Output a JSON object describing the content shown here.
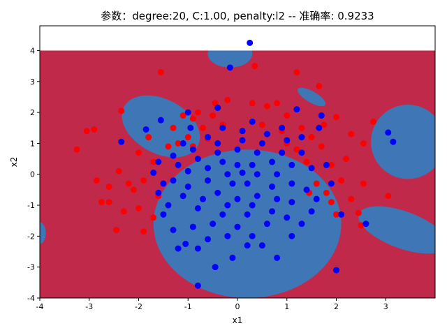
{
  "chart_data": {
    "type": "scatter",
    "title": "参数：degree:20, C:1.00, penalty:l2 -- 准确率: 0.9233",
    "xlabel": "x1",
    "ylabel": "x2",
    "xlim": [
      -4,
      4
    ],
    "ylim": [
      -4,
      4.8
    ],
    "xticks": [
      "-4",
      "-3",
      "-2",
      "-1",
      "0",
      "1",
      "2",
      "3"
    ],
    "yticks": [
      "-4",
      "-3",
      "-2",
      "-1",
      "0",
      "1",
      "2",
      "3",
      "4"
    ],
    "grid": false,
    "legend": "none",
    "colors": {
      "region_class0": "#c1294a",
      "region_class1": "#3f76b5",
      "points_class0": "#ff0000",
      "points_class1": "#0000ff"
    },
    "decision_regions": [
      {
        "class": 1,
        "shape": "ellipse",
        "cx": 0.2,
        "cy": -1.6,
        "rx": 1.9,
        "ry": 2.4
      },
      {
        "class": 1,
        "shape": "ellipse",
        "cx": -1.55,
        "cy": 1.55,
        "rx": 0.55,
        "ry": 1.35,
        "rotate_deg": 62
      },
      {
        "class": 1,
        "shape": "ellipse",
        "cx": -0.15,
        "cy": 3.9,
        "rx": 0.45,
        "ry": 0.45
      },
      {
        "class": 1,
        "shape": "ellipse",
        "cx": 1.5,
        "cy": 2.5,
        "rx": 0.32,
        "ry": 0.18,
        "rotate_deg": -30
      },
      {
        "class": 1,
        "shape": "ellipse",
        "cx": 3.45,
        "cy": 1.05,
        "rx": 0.75,
        "ry": 1.2
      },
      {
        "class": 1,
        "shape": "ellipse",
        "cx": 3.35,
        "cy": -1.8,
        "rx": 0.95,
        "ry": 0.6,
        "rotate_deg": -20
      },
      {
        "class": 1,
        "shape": "ellipse",
        "cx": -4.0,
        "cy": -1.9,
        "rx": 0.12,
        "ry": 0.35
      },
      {
        "class": 0,
        "shape": "rect",
        "x0": -4,
        "x1": 4,
        "y0": 4,
        "y1": 4.8,
        "fill": "white"
      }
    ],
    "series": [
      {
        "class": 0,
        "color": "#ff0000",
        "points": [
          [
            -3.25,
            0.8
          ],
          [
            -3.05,
            1.4
          ],
          [
            -2.9,
            1.45
          ],
          [
            -2.75,
            -0.9
          ],
          [
            -2.6,
            -0.9
          ],
          [
            -2.45,
            -1.8
          ],
          [
            -2.35,
            2.05
          ],
          [
            -2.1,
            -0.5
          ],
          [
            -1.9,
            -1.85
          ],
          [
            -1.55,
            3.3
          ],
          [
            -0.6,
            1.15
          ],
          [
            -0.9,
            1.8
          ],
          [
            -0.45,
            2.3
          ],
          [
            0.35,
            3.5
          ],
          [
            0.8,
            2.3
          ],
          [
            1.2,
            3.3
          ],
          [
            1.65,
            2.85
          ],
          [
            2.0,
            1.85
          ],
          [
            2.2,
            0.5
          ],
          [
            2.45,
            -1.25
          ],
          [
            2.5,
            -1.65
          ],
          [
            2.55,
            -0.3
          ],
          [
            2.75,
            1.7
          ],
          [
            3.05,
            -0.7
          ],
          [
            1.9,
            -0.9
          ],
          [
            -2.2,
            -0.3
          ],
          [
            -2.0,
            0.7
          ],
          [
            -1.8,
            1.2
          ],
          [
            -1.6,
            -0.7
          ],
          [
            -1.3,
            1.5
          ],
          [
            -1.1,
            1.9
          ],
          [
            -0.8,
            2.0
          ],
          [
            -0.2,
            2.4
          ],
          [
            0.3,
            2.3
          ],
          [
            0.6,
            2.2
          ],
          [
            1.0,
            1.9
          ],
          [
            1.3,
            1.5
          ],
          [
            1.5,
            1.2
          ],
          [
            1.7,
            0.9
          ],
          [
            1.9,
            0.3
          ],
          [
            2.1,
            -0.2
          ],
          [
            2.3,
            -0.8
          ],
          [
            1.8,
            -0.6
          ],
          [
            1.6,
            -0.3
          ],
          [
            1.4,
            0.4
          ],
          [
            1.2,
            0.8
          ],
          [
            0.9,
            1.4
          ],
          [
            -0.3,
            1.6
          ],
          [
            -0.7,
            1.5
          ],
          [
            -1.0,
            1.2
          ],
          [
            -1.4,
            0.9
          ],
          [
            -1.7,
            0.4
          ],
          [
            -1.9,
            -0.2
          ],
          [
            -2.4,
            0.1
          ],
          [
            -2.6,
            -0.4
          ],
          [
            -2.3,
            -1.2
          ],
          [
            -2.0,
            -1.1
          ],
          [
            -1.7,
            -1.4
          ],
          [
            1.1,
            -0.9
          ],
          [
            2.0,
            -1.3
          ],
          [
            2.3,
            1.3
          ],
          [
            2.55,
            1.0
          ],
          [
            -2.85,
            -0.2
          ],
          [
            -1.2,
            1.0
          ],
          [
            1.75,
            1.6
          ],
          [
            -0.9,
            0.9
          ],
          [
            1.0,
            1.0
          ],
          [
            0.5,
            1.6
          ],
          [
            -0.5,
            1.9
          ],
          [
            1.45,
            -0.6
          ]
        ]
      },
      {
        "class": 1,
        "color": "#0000ff",
        "points": [
          [
            0.25,
            4.25
          ],
          [
            -0.15,
            3.45
          ],
          [
            -2.35,
            1.05
          ],
          [
            -1.55,
            1.75
          ],
          [
            -1.85,
            1.45
          ],
          [
            -1.0,
            2.0
          ],
          [
            -0.4,
            2.15
          ],
          [
            1.2,
            2.1
          ],
          [
            1.7,
            1.9
          ],
          [
            3.05,
            1.35
          ],
          [
            3.15,
            1.05
          ],
          [
            2.6,
            -1.6
          ],
          [
            2.1,
            -1.3
          ],
          [
            2.0,
            -3.1
          ],
          [
            -0.8,
            -3.6
          ],
          [
            -0.45,
            -3.0
          ],
          [
            -0.1,
            -2.7
          ],
          [
            0.8,
            -2.7
          ],
          [
            -1.7,
            0.05
          ],
          [
            -1.6,
            -0.6
          ],
          [
            -1.2,
            -2.4
          ],
          [
            -1.05,
            -2.25
          ],
          [
            1.65,
            1.5
          ],
          [
            1.8,
            0.3
          ],
          [
            1.9,
            -0.3
          ],
          [
            -1.3,
            -1.8
          ],
          [
            -0.9,
            -1.7
          ],
          [
            -0.6,
            -2.1
          ],
          [
            0.2,
            -2.3
          ],
          [
            0.5,
            -2.3
          ],
          [
            1.1,
            -2.0
          ],
          [
            1.3,
            -1.6
          ],
          [
            1.5,
            -1.2
          ],
          [
            -1.4,
            -1.0
          ],
          [
            -1.3,
            0.6
          ],
          [
            -1.1,
            1.0
          ],
          [
            -0.6,
            1.2
          ],
          [
            0.1,
            1.4
          ],
          [
            0.6,
            1.3
          ],
          [
            1.0,
            1.1
          ],
          [
            1.3,
            0.7
          ],
          [
            1.5,
            0.2
          ],
          [
            1.4,
            -0.5
          ],
          [
            1.1,
            -0.9
          ],
          [
            0.7,
            -1.2
          ],
          [
            0.2,
            -1.3
          ],
          [
            -0.3,
            -1.3
          ],
          [
            -0.8,
            -1.1
          ],
          [
            -1.1,
            -0.7
          ],
          [
            -1.3,
            -0.2
          ],
          [
            -1.2,
            0.3
          ],
          [
            -0.9,
            0.8
          ],
          [
            -0.4,
            1.0
          ],
          [
            0.1,
            1.1
          ],
          [
            0.5,
            1.0
          ],
          [
            0.9,
            0.7
          ],
          [
            1.1,
            0.3
          ],
          [
            1.1,
            -0.3
          ],
          [
            0.8,
            -0.8
          ],
          [
            0.3,
            -1.0
          ],
          [
            -0.2,
            -1.0
          ],
          [
            -0.7,
            -0.8
          ],
          [
            -1.0,
            -0.4
          ],
          [
            -1.0,
            0.1
          ],
          [
            -0.8,
            0.5
          ],
          [
            -0.4,
            0.7
          ],
          [
            0.0,
            0.8
          ],
          [
            0.4,
            0.7
          ],
          [
            0.7,
            0.4
          ],
          [
            0.8,
            0.0
          ],
          [
            0.7,
            -0.4
          ],
          [
            0.4,
            -0.7
          ],
          [
            0.0,
            -0.8
          ],
          [
            -0.4,
            -0.6
          ],
          [
            -0.6,
            -0.2
          ],
          [
            -0.6,
            0.2
          ],
          [
            -0.3,
            0.4
          ],
          [
            0.0,
            0.3
          ],
          [
            0.3,
            0.3
          ],
          [
            0.4,
            0.0
          ],
          [
            0.2,
            -0.3
          ],
          [
            -0.1,
            -0.3
          ],
          [
            -0.2,
            0.0
          ],
          [
            0.1,
            0.05
          ],
          [
            -1.5,
            -0.3
          ],
          [
            -0.95,
            1.5
          ],
          [
            -0.3,
            1.5
          ],
          [
            0.3,
            1.7
          ],
          [
            0.9,
            1.5
          ],
          [
            1.3,
            1.2
          ],
          [
            -1.6,
            0.4
          ],
          [
            -1.5,
            -1.3
          ],
          [
            -0.5,
            -1.6
          ],
          [
            0.0,
            -1.7
          ],
          [
            0.6,
            -1.6
          ],
          [
            1.0,
            -1.4
          ],
          [
            1.6,
            -0.8
          ],
          [
            -0.8,
            -2.4
          ],
          [
            0.3,
            -2.0
          ],
          [
            -0.2,
            -2.0
          ]
        ]
      }
    ]
  }
}
